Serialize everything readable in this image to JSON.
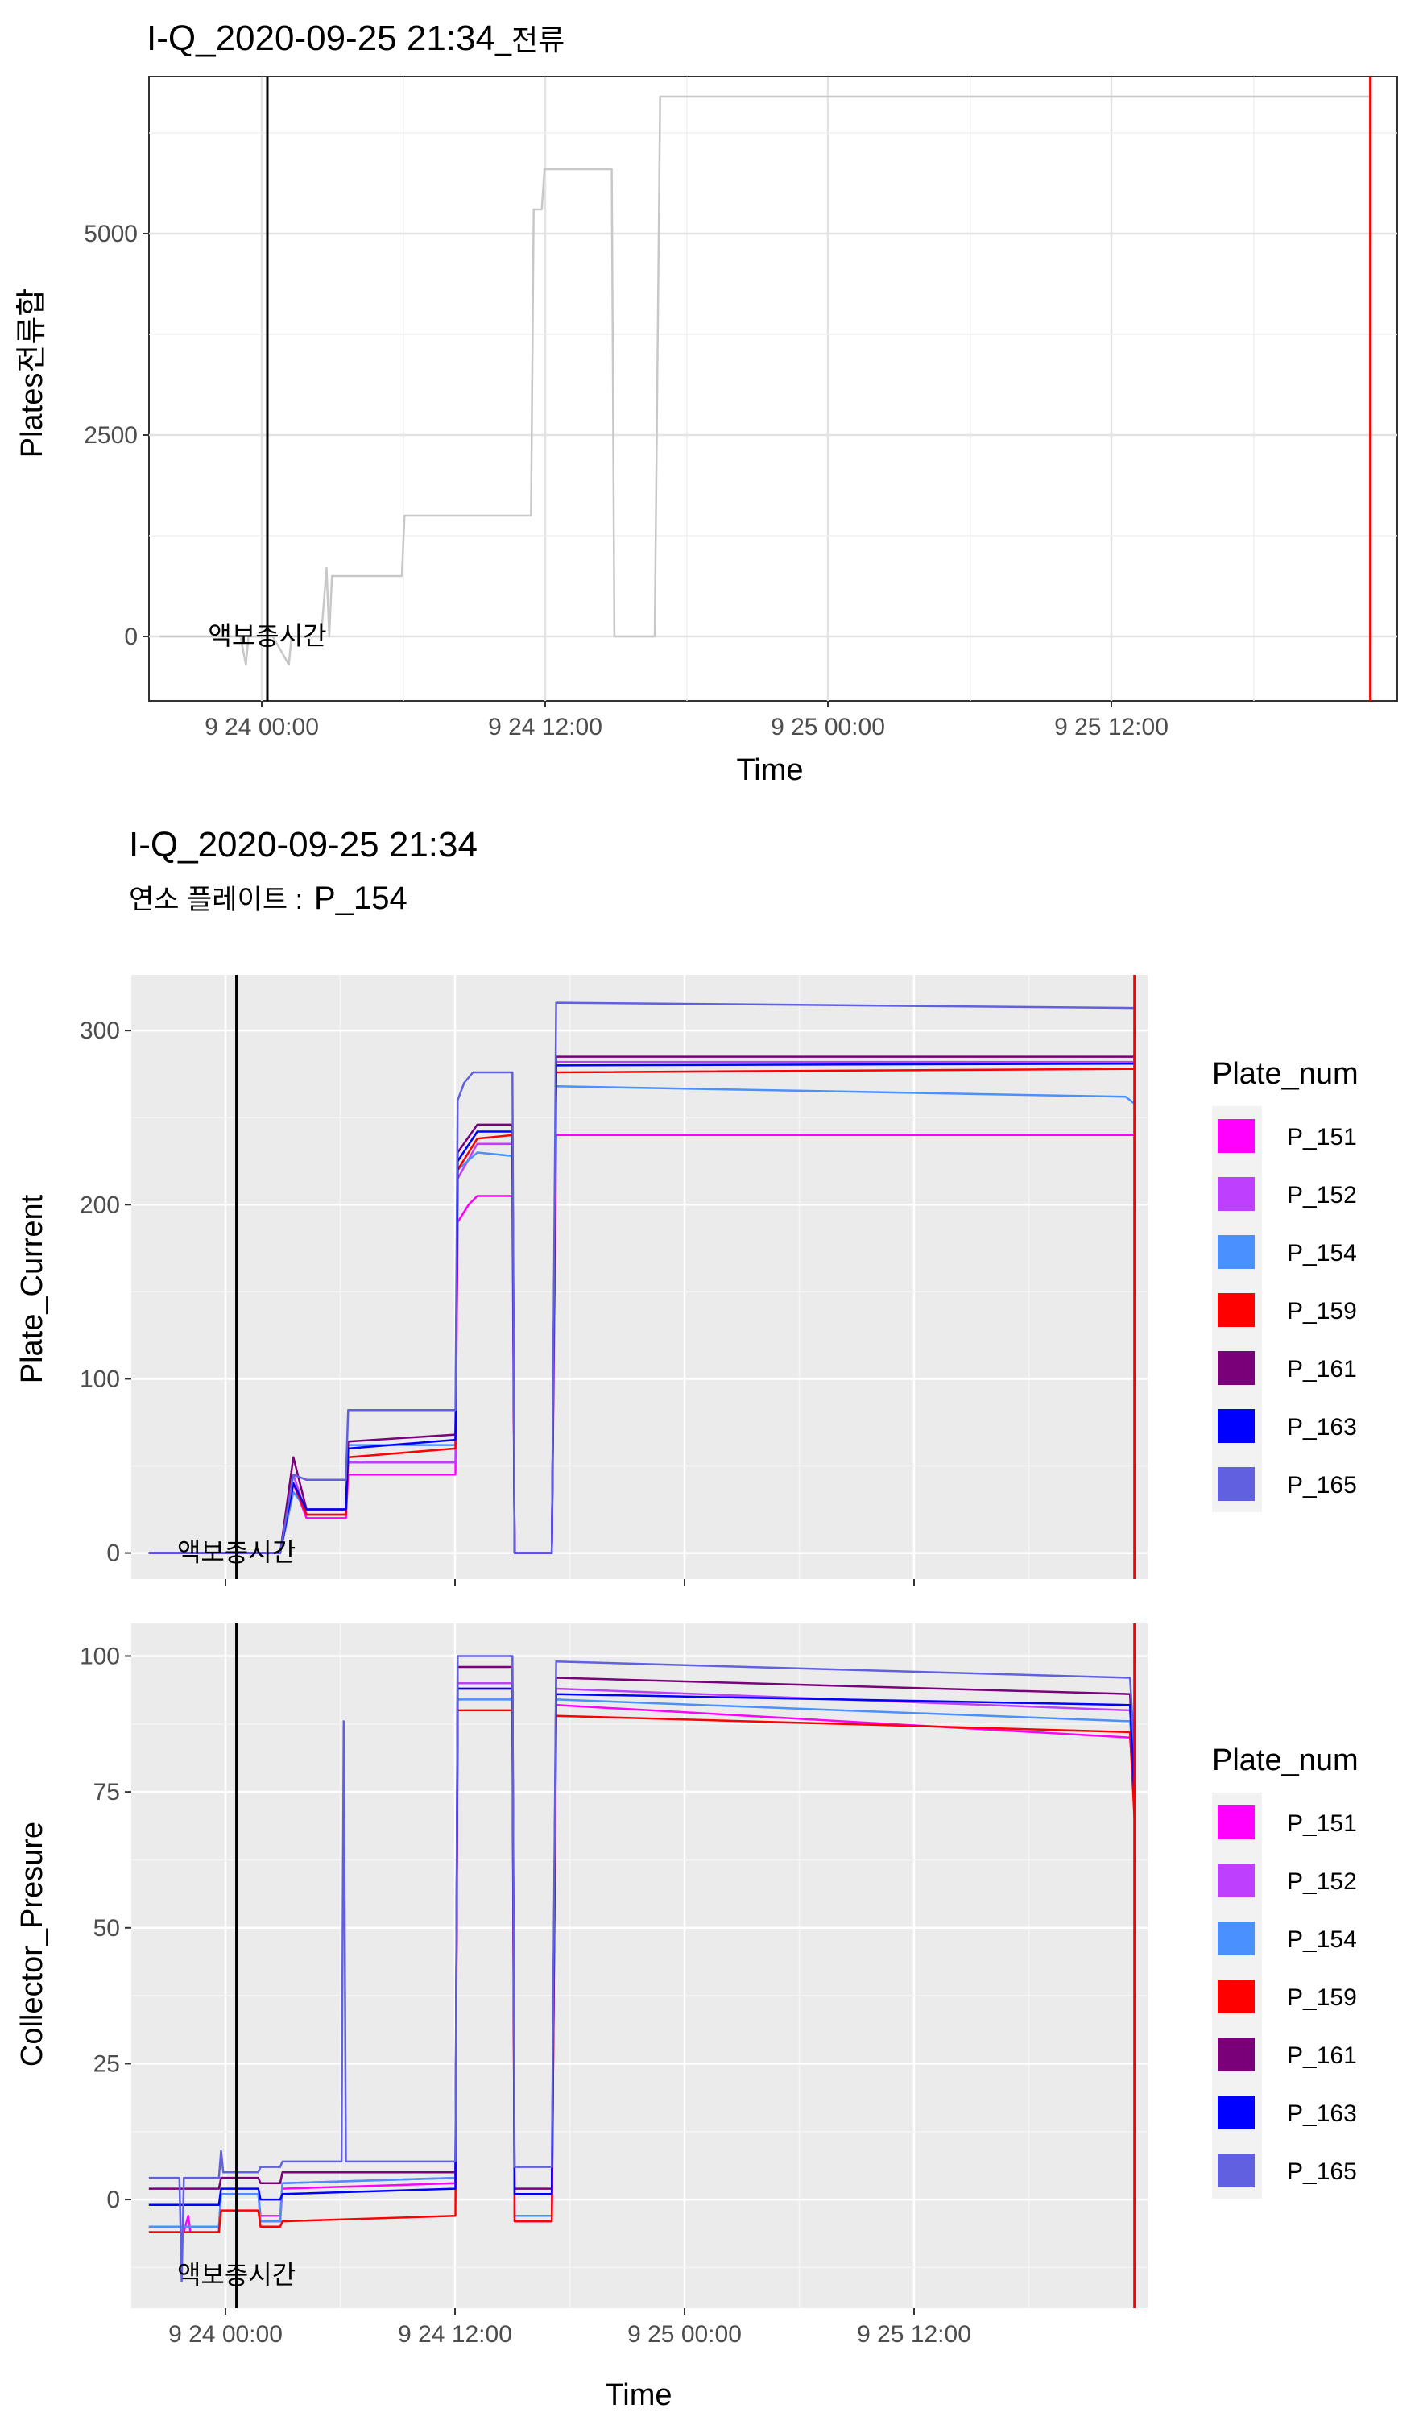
{
  "chart_data": [
    {
      "type": "line",
      "title": "I-Q_2020-09-25 21:34",
      "title_suffix": "_전류",
      "xlabel": "Time",
      "ylabel": "Plates전류합",
      "x_ticks": [
        "9 24 00:00",
        "9 24 12:00",
        "9 25 00:00",
        "9 25 12:00"
      ],
      "y_ticks": [
        0,
        2500,
        5000
      ],
      "xlim": [
        -1.2,
        22.0
      ],
      "ylim": [
        -800,
        6950
      ],
      "annotation": {
        "text": "액보충시간",
        "x": 1.0,
        "y": 0
      },
      "vlines": [
        {
          "x": 1.0,
          "color": "#000000"
        },
        {
          "x": 21.5,
          "color": "#ff0000"
        }
      ],
      "background": "white",
      "grid": true,
      "series": [
        {
          "color": "#c8c8c8",
          "points": [
            [
              -1.0,
              0
            ],
            [
              0.5,
              0
            ],
            [
              0.6,
              -350
            ],
            [
              0.65,
              0
            ],
            [
              1.1,
              0
            ],
            [
              1.4,
              -350
            ],
            [
              1.45,
              0
            ],
            [
              2.0,
              0
            ],
            [
              2.1,
              850
            ],
            [
              2.15,
              0
            ],
            [
              2.2,
              750
            ],
            [
              3.5,
              750
            ],
            [
              3.55,
              1500
            ],
            [
              5.9,
              1500
            ],
            [
              5.95,
              5300
            ],
            [
              6.1,
              5300
            ],
            [
              6.15,
              5800
            ],
            [
              7.4,
              5800
            ],
            [
              7.45,
              0
            ],
            [
              8.2,
              0
            ],
            [
              8.3,
              6700
            ],
            [
              21.5,
              6700
            ]
          ]
        }
      ]
    },
    {
      "type": "line",
      "title": "I-Q_2020-09-25 21:34",
      "subtitle_label": "연소 플레이트 :",
      "subtitle_value": "P_154",
      "xlabel": "",
      "ylabel": "Plate_Current",
      "x_ticks": [
        "9 24 00:00",
        "9 24 12:00",
        "9 25 00:00",
        "9 25 12:00"
      ],
      "y_ticks": [
        0,
        100,
        200,
        300
      ],
      "xlim": [
        -1.4,
        21.8
      ],
      "ylim": [
        -15,
        332
      ],
      "annotation": {
        "text": "액보충시간",
        "x": 1.0,
        "y": 0
      },
      "vlines": [
        {
          "x": 1.0,
          "color": "#000000"
        },
        {
          "x": 21.5,
          "color": "#ff0000"
        }
      ],
      "legend_title": "Plate_num",
      "background": "grey",
      "grid": true,
      "series": [
        {
          "name": "P_151",
          "color": "#ff00ff",
          "points": [
            [
              -1.0,
              0
            ],
            [
              2.0,
              0
            ],
            [
              2.3,
              40
            ],
            [
              2.6,
              20
            ],
            [
              3.5,
              20
            ],
            [
              3.55,
              45
            ],
            [
              6.0,
              45
            ],
            [
              6.05,
              190
            ],
            [
              6.3,
              200
            ],
            [
              6.5,
              205
            ],
            [
              7.3,
              205
            ],
            [
              7.35,
              0
            ],
            [
              8.2,
              0
            ],
            [
              8.3,
              240
            ],
            [
              21.5,
              240
            ]
          ]
        },
        {
          "name": "P_152",
          "color": "#bf3fff",
          "points": [
            [
              -1.0,
              0
            ],
            [
              2.0,
              0
            ],
            [
              2.3,
              45
            ],
            [
              2.6,
              22
            ],
            [
              3.5,
              22
            ],
            [
              3.55,
              52
            ],
            [
              6.0,
              52
            ],
            [
              6.05,
              215
            ],
            [
              6.5,
              235
            ],
            [
              7.3,
              235
            ],
            [
              7.35,
              0
            ],
            [
              8.2,
              0
            ],
            [
              8.3,
              282
            ],
            [
              21.5,
              282
            ]
          ]
        },
        {
          "name": "P_154",
          "color": "#4a90ff",
          "points": [
            [
              -1.0,
              0
            ],
            [
              2.0,
              0
            ],
            [
              2.3,
              35
            ],
            [
              2.6,
              25
            ],
            [
              3.5,
              25
            ],
            [
              3.55,
              62
            ],
            [
              6.0,
              62
            ],
            [
              6.05,
              220
            ],
            [
              6.5,
              230
            ],
            [
              7.3,
              228
            ],
            [
              7.35,
              0
            ],
            [
              8.2,
              0
            ],
            [
              8.3,
              268
            ],
            [
              21.3,
              262
            ],
            [
              21.5,
              258
            ]
          ]
        },
        {
          "name": "P_159",
          "color": "#ff0000",
          "points": [
            [
              -1.0,
              0
            ],
            [
              2.0,
              0
            ],
            [
              2.3,
              40
            ],
            [
              2.6,
              22
            ],
            [
              3.5,
              22
            ],
            [
              3.55,
              55
            ],
            [
              6.0,
              60
            ],
            [
              6.05,
              220
            ],
            [
              6.5,
              238
            ],
            [
              7.3,
              240
            ],
            [
              7.35,
              0
            ],
            [
              8.2,
              0
            ],
            [
              8.3,
              276
            ],
            [
              21.5,
              278
            ]
          ]
        },
        {
          "name": "P_161",
          "color": "#7a007a",
          "points": [
            [
              -1.0,
              0
            ],
            [
              2.0,
              0
            ],
            [
              2.3,
              55
            ],
            [
              2.6,
              25
            ],
            [
              3.5,
              25
            ],
            [
              3.55,
              64
            ],
            [
              6.0,
              68
            ],
            [
              6.05,
              230
            ],
            [
              6.5,
              246
            ],
            [
              7.3,
              246
            ],
            [
              7.35,
              0
            ],
            [
              8.2,
              0
            ],
            [
              8.3,
              285
            ],
            [
              21.5,
              285
            ]
          ]
        },
        {
          "name": "P_163",
          "color": "#0000ff",
          "points": [
            [
              -1.0,
              0
            ],
            [
              2.0,
              0
            ],
            [
              2.3,
              40
            ],
            [
              2.6,
              25
            ],
            [
              3.5,
              25
            ],
            [
              3.55,
              60
            ],
            [
              6.0,
              65
            ],
            [
              6.05,
              225
            ],
            [
              6.5,
              242
            ],
            [
              7.3,
              242
            ],
            [
              7.35,
              0
            ],
            [
              8.2,
              0
            ],
            [
              8.3,
              280
            ],
            [
              21.5,
              281
            ]
          ]
        },
        {
          "name": "P_165",
          "color": "#6060e0",
          "points": [
            [
              -1.0,
              0
            ],
            [
              2.0,
              0
            ],
            [
              2.3,
              45
            ],
            [
              2.6,
              42
            ],
            [
              3.5,
              42
            ],
            [
              3.55,
              82
            ],
            [
              6.0,
              82
            ],
            [
              6.05,
              260
            ],
            [
              6.2,
              270
            ],
            [
              6.4,
              276
            ],
            [
              7.3,
              276
            ],
            [
              7.35,
              0
            ],
            [
              8.2,
              0
            ],
            [
              8.3,
              316
            ],
            [
              21.5,
              313
            ]
          ]
        }
      ]
    },
    {
      "type": "line",
      "title": "",
      "xlabel": "Time",
      "ylabel": "Collector_Presure",
      "x_ticks": [
        "9 24 00:00",
        "9 24 12:00",
        "9 25 00:00",
        "9 25 12:00"
      ],
      "y_ticks": [
        0,
        25,
        50,
        75,
        100
      ],
      "xlim": [
        -1.4,
        21.8
      ],
      "ylim": [
        -20,
        106
      ],
      "annotation": {
        "text": "액보충시간",
        "x": 1.0,
        "y": -14
      },
      "vlines": [
        {
          "x": 1.0,
          "color": "#000000"
        },
        {
          "x": 21.5,
          "color": "#ff0000"
        }
      ],
      "legend_title": "Plate_num",
      "background": "grey",
      "grid": true,
      "series": [
        {
          "name": "P_151",
          "color": "#ff00ff",
          "points": [
            [
              -1.0,
              -6
            ],
            [
              -0.2,
              -6
            ],
            [
              -0.1,
              -3
            ],
            [
              -0.05,
              -6
            ],
            [
              0.6,
              -6
            ],
            [
              0.65,
              1
            ],
            [
              1.5,
              1
            ],
            [
              1.55,
              -4
            ],
            [
              2.0,
              -4
            ],
            [
              2.05,
              2
            ],
            [
              6.0,
              3
            ],
            [
              6.05,
              94
            ],
            [
              7.3,
              94
            ],
            [
              7.35,
              -4
            ],
            [
              8.2,
              -4
            ],
            [
              8.3,
              91
            ],
            [
              21.4,
              85
            ],
            [
              21.5,
              74
            ]
          ]
        },
        {
          "name": "P_152",
          "color": "#bf3fff",
          "points": [
            [
              -1.0,
              -5
            ],
            [
              0.6,
              -5
            ],
            [
              0.65,
              1
            ],
            [
              1.5,
              1
            ],
            [
              1.55,
              -3
            ],
            [
              2.0,
              -3
            ],
            [
              2.05,
              3
            ],
            [
              6.0,
              4
            ],
            [
              6.05,
              95
            ],
            [
              7.3,
              95
            ],
            [
              7.35,
              -3
            ],
            [
              8.2,
              -3
            ],
            [
              8.3,
              94
            ],
            [
              21.4,
              90
            ],
            [
              21.5,
              78
            ]
          ]
        },
        {
          "name": "P_154",
          "color": "#4a90ff",
          "points": [
            [
              -1.0,
              -5
            ],
            [
              0.6,
              -5
            ],
            [
              0.65,
              1
            ],
            [
              1.5,
              1
            ],
            [
              1.55,
              -4
            ],
            [
              2.0,
              -4
            ],
            [
              2.05,
              3
            ],
            [
              6.0,
              4
            ],
            [
              6.05,
              92
            ],
            [
              7.3,
              92
            ],
            [
              7.35,
              -3
            ],
            [
              8.2,
              -3
            ],
            [
              8.3,
              92
            ],
            [
              21.4,
              88
            ],
            [
              21.5,
              78
            ]
          ]
        },
        {
          "name": "P_159",
          "color": "#ff0000",
          "points": [
            [
              -1.0,
              -6
            ],
            [
              0.6,
              -6
            ],
            [
              0.65,
              -2
            ],
            [
              1.5,
              -2
            ],
            [
              1.55,
              -5
            ],
            [
              2.0,
              -5
            ],
            [
              2.05,
              -4
            ],
            [
              6.0,
              -3
            ],
            [
              6.05,
              90
            ],
            [
              7.3,
              90
            ],
            [
              7.35,
              -4
            ],
            [
              8.2,
              -4
            ],
            [
              8.3,
              89
            ],
            [
              21.4,
              86
            ],
            [
              21.5,
              70
            ]
          ]
        },
        {
          "name": "P_161",
          "color": "#7a007a",
          "points": [
            [
              -1.0,
              2
            ],
            [
              0.6,
              2
            ],
            [
              0.65,
              4
            ],
            [
              1.5,
              4
            ],
            [
              1.55,
              3
            ],
            [
              2.0,
              3
            ],
            [
              2.05,
              5
            ],
            [
              6.0,
              5
            ],
            [
              6.05,
              98
            ],
            [
              7.3,
              98
            ],
            [
              7.35,
              2
            ],
            [
              8.2,
              2
            ],
            [
              8.3,
              96
            ],
            [
              21.4,
              93
            ],
            [
              21.5,
              76
            ]
          ]
        },
        {
          "name": "P_163",
          "color": "#0000ff",
          "points": [
            [
              -1.0,
              -1
            ],
            [
              0.6,
              -1
            ],
            [
              0.65,
              2
            ],
            [
              1.5,
              2
            ],
            [
              1.55,
              0
            ],
            [
              2.0,
              0
            ],
            [
              2.05,
              1
            ],
            [
              6.0,
              2
            ],
            [
              6.05,
              94
            ],
            [
              7.3,
              94
            ],
            [
              7.35,
              1
            ],
            [
              8.2,
              1
            ],
            [
              8.3,
              93
            ],
            [
              21.4,
              91
            ],
            [
              21.5,
              74
            ]
          ]
        },
        {
          "name": "P_165",
          "color": "#6060e0",
          "points": [
            [
              -1.0,
              4
            ],
            [
              -0.3,
              4
            ],
            [
              -0.25,
              -15
            ],
            [
              -0.2,
              4
            ],
            [
              0.6,
              4
            ],
            [
              0.65,
              9
            ],
            [
              0.7,
              5
            ],
            [
              1.5,
              5
            ],
            [
              1.55,
              6
            ],
            [
              2.0,
              6
            ],
            [
              2.05,
              7
            ],
            [
              3.4,
              7
            ],
            [
              3.45,
              88
            ],
            [
              3.5,
              7
            ],
            [
              6.0,
              7
            ],
            [
              6.05,
              100
            ],
            [
              7.3,
              100
            ],
            [
              7.35,
              6
            ],
            [
              8.2,
              6
            ],
            [
              8.3,
              99
            ],
            [
              21.4,
              96
            ],
            [
              21.5,
              82
            ]
          ]
        }
      ]
    }
  ]
}
